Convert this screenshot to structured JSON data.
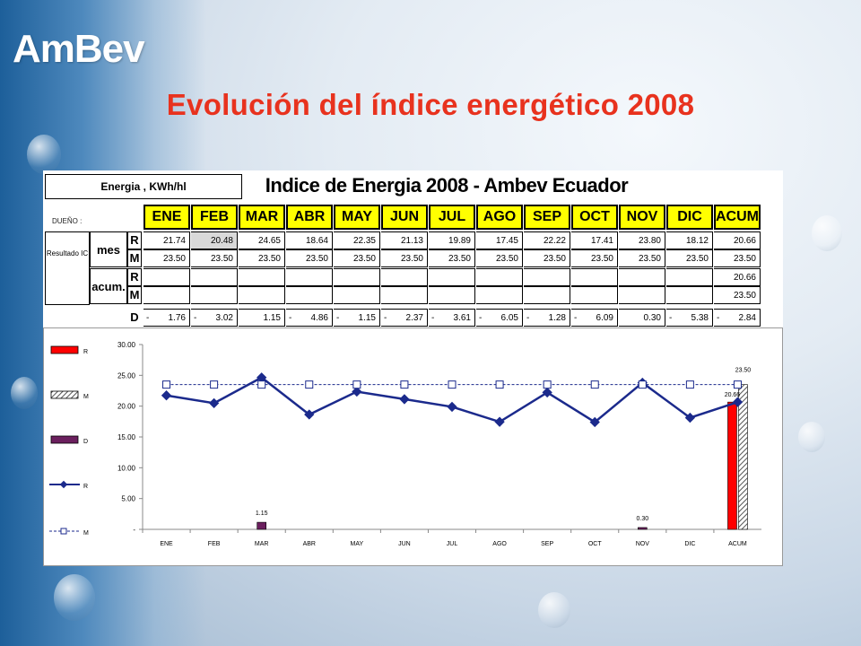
{
  "brand": {
    "logo_text": "AmBev"
  },
  "slide": {
    "title": "Evolución del índice energético 2008"
  },
  "table": {
    "unit_label": "Energia , KWh/hl",
    "title": "Indice de Energia 2008 - Ambev Ecuador",
    "owner_label": "DUEÑO :",
    "result_label": "Resultado IC",
    "mes_label": "mes",
    "acum_label": "acum.",
    "r_label": "R",
    "m_label": "M",
    "d_label": "D",
    "months": [
      "ENE",
      "FEB",
      "MAR",
      "ABR",
      "MAY",
      "JUN",
      "JUL",
      "AGO",
      "SEP",
      "OCT",
      "NOV",
      "DIC",
      "ACUM"
    ],
    "mes_r": [
      "21.74",
      "20.48",
      "24.65",
      "18.64",
      "22.35",
      "21.13",
      "19.89",
      "17.45",
      "22.22",
      "17.41",
      "23.80",
      "18.12",
      "20.66"
    ],
    "mes_m": [
      "23.50",
      "23.50",
      "23.50",
      "23.50",
      "23.50",
      "23.50",
      "23.50",
      "23.50",
      "23.50",
      "23.50",
      "23.50",
      "23.50",
      "23.50"
    ],
    "acum_r": [
      "",
      "",
      "",
      "",
      "",
      "",
      "",
      "",
      "",
      "",
      "",
      "",
      "20.66"
    ],
    "acum_m": [
      "",
      "",
      "",
      "",
      "",
      "",
      "",
      "",
      "",
      "",
      "",
      "",
      "23.50"
    ],
    "d_dash": [
      "-",
      "-",
      "",
      "-",
      "-",
      "-",
      "-",
      "-",
      "-",
      "-",
      "",
      "-",
      "-"
    ],
    "d_values": [
      "1.76",
      "3.02",
      "1.15",
      "4.86",
      "1.15",
      "2.37",
      "3.61",
      "6.05",
      "1.28",
      "6.09",
      "0.30",
      "5.38",
      "2.84"
    ]
  },
  "chart_data": {
    "type": "bar",
    "categories": [
      "ENE",
      "FEB",
      "MAR",
      "ABR",
      "MAY",
      "JUN",
      "JUL",
      "AGO",
      "SEP",
      "OCT",
      "NOV",
      "DIC",
      "ACUM"
    ],
    "ylim": [
      0,
      30
    ],
    "yticks": [
      "-",
      "5.00",
      "10.00",
      "15.00",
      "20.00",
      "25.00",
      "30.00"
    ],
    "legend_position": "left",
    "series": [
      {
        "name": "R",
        "kind": "bar",
        "color": "#ff0000",
        "values": [
          null,
          null,
          null,
          null,
          null,
          null,
          null,
          null,
          null,
          null,
          null,
          null,
          20.66
        ]
      },
      {
        "name": "M",
        "kind": "bar",
        "color": "#bfbfbf",
        "pattern": "hatched",
        "values": [
          null,
          null,
          null,
          null,
          null,
          null,
          null,
          null,
          null,
          null,
          null,
          null,
          23.5
        ]
      },
      {
        "name": "D",
        "kind": "bar",
        "color": "#6b1f5e",
        "values": [
          null,
          null,
          1.15,
          null,
          null,
          null,
          null,
          null,
          null,
          null,
          0.3,
          null,
          null
        ]
      },
      {
        "name": "R",
        "kind": "line",
        "color": "#1b2a8c",
        "values": [
          21.74,
          20.48,
          24.65,
          18.64,
          22.35,
          21.13,
          19.89,
          17.45,
          22.22,
          17.41,
          23.8,
          18.12,
          20.66
        ]
      },
      {
        "name": "M",
        "kind": "line",
        "color": "#1b2a8c",
        "dashed": true,
        "values": [
          23.5,
          23.5,
          23.5,
          23.5,
          23.5,
          23.5,
          23.5,
          23.5,
          23.5,
          23.5,
          23.5,
          23.5,
          23.5
        ]
      }
    ],
    "data_labels": [
      {
        "category": "MAR",
        "text": "1.15"
      },
      {
        "category": "NOV",
        "text": "0.30"
      },
      {
        "category": "ACUM",
        "text": "20.66"
      },
      {
        "category": "ACUM",
        "text": "23.50"
      }
    ]
  }
}
